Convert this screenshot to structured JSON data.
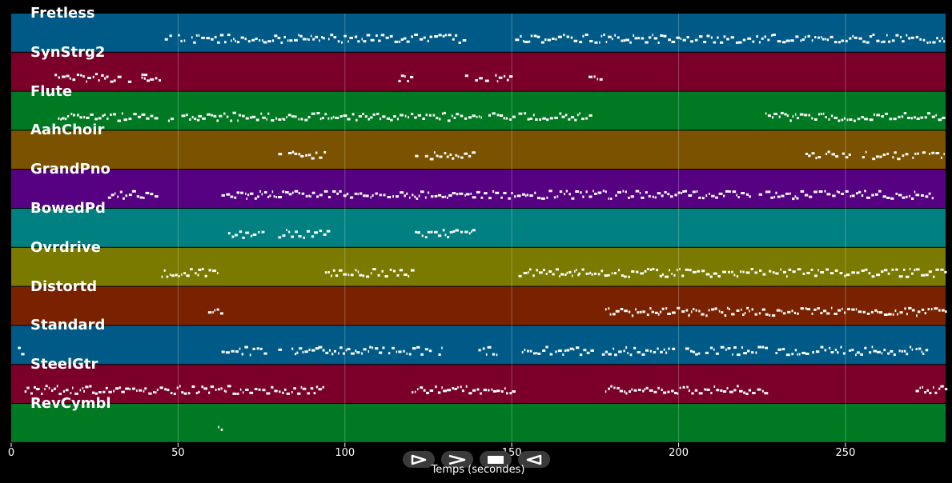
{
  "tracks": [
    {
      "name": "Fretless",
      "color": "#005a87"
    },
    {
      "name": "SynStrg2",
      "color": "#7a002a"
    },
    {
      "name": "Flute",
      "color": "#007a22"
    },
    {
      "name": "AahChoir",
      "color": "#7a5200"
    },
    {
      "name": "GrandPno",
      "color": "#560082"
    },
    {
      "name": "BowedPd",
      "color": "#008080"
    },
    {
      "name": "Ovrdrive",
      "color": "#7a7a00"
    },
    {
      "name": "Distortd",
      "color": "#7a2200"
    },
    {
      "name": "Standard",
      "color": "#005a87"
    },
    {
      "name": "SteelGtr",
      "color": "#7a002a"
    },
    {
      "name": "RevCymbl",
      "color": "#007a22"
    }
  ],
  "xaxis": {
    "label": "Temps (secondes)",
    "min": 0,
    "max": 280,
    "ticks": [
      {
        "value": 0,
        "label": "0"
      },
      {
        "value": 50,
        "label": "50"
      },
      {
        "value": 100,
        "label": "100"
      },
      {
        "value": 150,
        "label": "150"
      },
      {
        "value": 200,
        "label": "200"
      },
      {
        "value": 250,
        "label": "250"
      }
    ]
  },
  "notes": [
    [
      [
        46,
        48
      ],
      [
        50,
        52
      ],
      [
        54,
        94
      ],
      [
        95,
        136
      ],
      [
        151,
        280
      ]
    ],
    [
      [
        13,
        33
      ],
      [
        35,
        36
      ],
      [
        39,
        40
      ],
      [
        39,
        45
      ],
      [
        116,
        120
      ],
      [
        136,
        137
      ],
      [
        139,
        141
      ],
      [
        142,
        143
      ],
      [
        145,
        150
      ],
      [
        173,
        177
      ]
    ],
    [
      [
        14,
        24
      ],
      [
        25,
        39
      ],
      [
        39,
        44
      ],
      [
        47,
        48
      ],
      [
        51,
        56
      ],
      [
        56,
        117
      ],
      [
        118,
        141
      ],
      [
        143,
        151
      ],
      [
        152,
        174
      ],
      [
        226,
        280
      ]
    ],
    [
      [
        80,
        81
      ],
      [
        83,
        94
      ],
      [
        121,
        122
      ],
      [
        124,
        139
      ],
      [
        238,
        243
      ],
      [
        244,
        248
      ],
      [
        249,
        251
      ],
      [
        255,
        256
      ],
      [
        258,
        263
      ],
      [
        264,
        269
      ],
      [
        270,
        272
      ],
      [
        273,
        274
      ],
      [
        275,
        280
      ]
    ],
    [
      [
        29,
        44
      ],
      [
        63,
        94
      ],
      [
        95,
        128
      ],
      [
        129,
        180
      ],
      [
        181,
        222
      ],
      [
        224,
        225
      ],
      [
        226,
        276
      ]
    ],
    [
      [
        65,
        74
      ],
      [
        75,
        76
      ],
      [
        80,
        95
      ],
      [
        121,
        122
      ],
      [
        123,
        139
      ]
    ],
    [
      [
        45,
        54
      ],
      [
        55,
        56
      ],
      [
        56,
        62
      ],
      [
        94,
        120
      ],
      [
        152,
        170
      ],
      [
        170,
        195
      ],
      [
        195,
        226
      ],
      [
        227,
        280
      ]
    ],
    [
      [
        59,
        63
      ],
      [
        178,
        203
      ],
      [
        203,
        226
      ],
      [
        226,
        280
      ]
    ],
    [
      [
        2,
        3
      ],
      [
        63,
        77
      ],
      [
        80,
        81
      ],
      [
        84,
        92
      ],
      [
        92,
        102
      ],
      [
        103,
        112
      ],
      [
        113,
        123
      ],
      [
        124,
        126
      ],
      [
        128,
        129
      ],
      [
        140,
        146
      ],
      [
        153,
        162
      ],
      [
        163,
        174
      ],
      [
        177,
        197
      ],
      [
        198,
        199
      ],
      [
        202,
        206
      ],
      [
        208,
        215
      ],
      [
        216,
        222
      ],
      [
        223,
        227
      ],
      [
        229,
        237
      ],
      [
        238,
        239
      ],
      [
        240,
        244
      ],
      [
        245,
        250
      ],
      [
        251,
        256
      ],
      [
        257,
        265
      ],
      [
        266,
        270
      ],
      [
        271,
        274
      ]
    ],
    [
      [
        4,
        94
      ],
      [
        120,
        151
      ],
      [
        178,
        227
      ],
      [
        271,
        280
      ]
    ],
    [
      [
        62,
        63
      ]
    ]
  ],
  "controls": [
    {
      "name": "play-icon"
    },
    {
      "name": "fast-forward-icon"
    },
    {
      "name": "stop-icon"
    },
    {
      "name": "rewind-icon"
    }
  ]
}
